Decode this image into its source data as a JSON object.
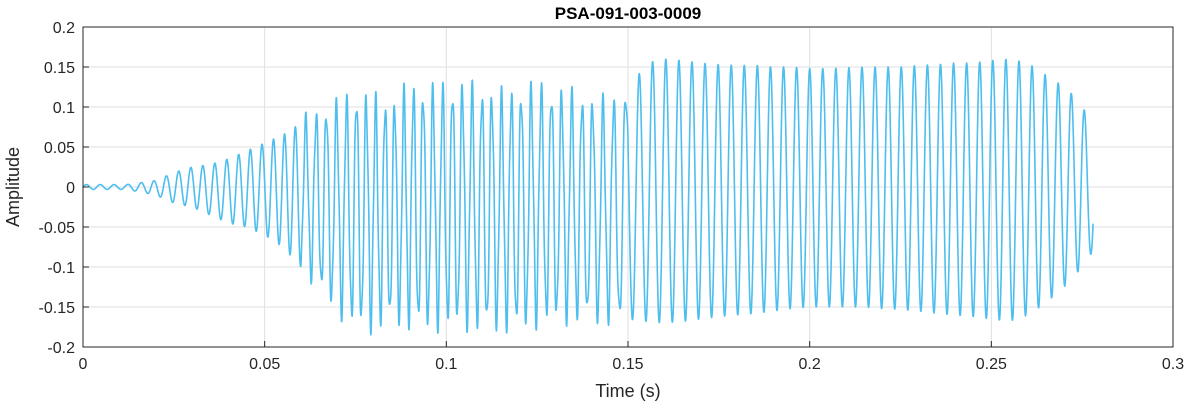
{
  "chart_data": {
    "type": "line",
    "title": "PSA-091-003-0009",
    "xlabel": "Time (s)",
    "ylabel": "Amplitude",
    "xlim": [
      0,
      0.3
    ],
    "ylim": [
      -0.2,
      0.2
    ],
    "grid": true,
    "x_ticks": [
      0,
      0.05,
      0.1,
      0.15,
      0.2,
      0.25,
      0.3
    ],
    "x_tick_labels": [
      "0",
      "0.05",
      "0.1",
      "0.15",
      "0.2",
      "0.25",
      "0.3"
    ],
    "y_ticks": [
      0.2,
      0.15,
      0.1,
      0.05,
      0,
      -0.05,
      -0.1,
      -0.15,
      -0.2
    ],
    "y_tick_labels": [
      "0.2",
      "0.15",
      "0.1",
      "0.05",
      "0",
      "-0.05",
      "-0.1",
      "-0.15",
      "-0.2"
    ],
    "line_color": "#4DBEEE",
    "series": [
      {
        "x": [
          0,
          0.012,
          0.02,
          0.025,
          0.03,
          0.035,
          0.04,
          0.045,
          0.05,
          0.055,
          0.06,
          0.065,
          0.07,
          0.075,
          0.08,
          0.085,
          0.09,
          0.095,
          0.1,
          0.105,
          0.11,
          0.115,
          0.12,
          0.125,
          0.13,
          0.135,
          0.14,
          0.145,
          0.15,
          0.155,
          0.16,
          0.165,
          0.17,
          0.175,
          0.18,
          0.185,
          0.19,
          0.195,
          0.2,
          0.205,
          0.21,
          0.215,
          0.22,
          0.225,
          0.23,
          0.235,
          0.24,
          0.245,
          0.25,
          0.255,
          0.26,
          0.265,
          0.27,
          0.275,
          0.278
        ],
        "y_max": [
          0.003,
          0.003,
          0.008,
          0.018,
          0.025,
          0.028,
          0.035,
          0.045,
          0.055,
          0.065,
          0.08,
          0.09,
          0.1,
          0.11,
          0.105,
          0.1,
          0.12,
          0.115,
          0.12,
          0.12,
          0.115,
          0.11,
          0.115,
          0.12,
          0.115,
          0.11,
          0.105,
          0.1,
          0.12,
          0.155,
          0.16,
          0.158,
          0.155,
          0.153,
          0.152,
          0.152,
          0.15,
          0.15,
          0.148,
          0.148,
          0.149,
          0.15,
          0.15,
          0.15,
          0.152,
          0.153,
          0.155,
          0.155,
          0.158,
          0.16,
          0.155,
          0.14,
          0.125,
          0.105,
          0.06
        ],
        "y_min": [
          -0.003,
          -0.003,
          -0.01,
          -0.02,
          -0.025,
          -0.035,
          -0.045,
          -0.05,
          -0.06,
          -0.075,
          -0.1,
          -0.12,
          -0.15,
          -0.165,
          -0.17,
          -0.16,
          -0.165,
          -0.168,
          -0.165,
          -0.165,
          -0.17,
          -0.168,
          -0.17,
          -0.162,
          -0.16,
          -0.158,
          -0.16,
          -0.16,
          -0.165,
          -0.168,
          -0.17,
          -0.168,
          -0.165,
          -0.162,
          -0.16,
          -0.158,
          -0.155,
          -0.152,
          -0.15,
          -0.15,
          -0.15,
          -0.15,
          -0.152,
          -0.153,
          -0.155,
          -0.158,
          -0.16,
          -0.162,
          -0.165,
          -0.168,
          -0.16,
          -0.145,
          -0.125,
          -0.1,
          -0.08
        ],
        "period_s": [
          0.0038,
          0.0038,
          0.0034,
          0.0034,
          0.0033,
          0.0033,
          0.0033,
          0.0032,
          0.0032,
          0.003,
          0.0029,
          0.0028,
          0.0028,
          0.0027,
          0.0026,
          0.0026,
          0.0026,
          0.0027,
          0.0027,
          0.0027,
          0.0027,
          0.0027,
          0.0027,
          0.0028,
          0.0028,
          0.0028,
          0.0029,
          0.0029,
          0.0037,
          0.0037,
          0.0036,
          0.0036,
          0.0036,
          0.0036,
          0.0036,
          0.0036,
          0.0036,
          0.0036,
          0.0036,
          0.0036,
          0.0036,
          0.0036,
          0.0036,
          0.0036,
          0.0036,
          0.0036,
          0.0036,
          0.0036,
          0.0036,
          0.0036,
          0.0036,
          0.0036,
          0.0036,
          0.0036,
          0.0036
        ]
      }
    ]
  }
}
